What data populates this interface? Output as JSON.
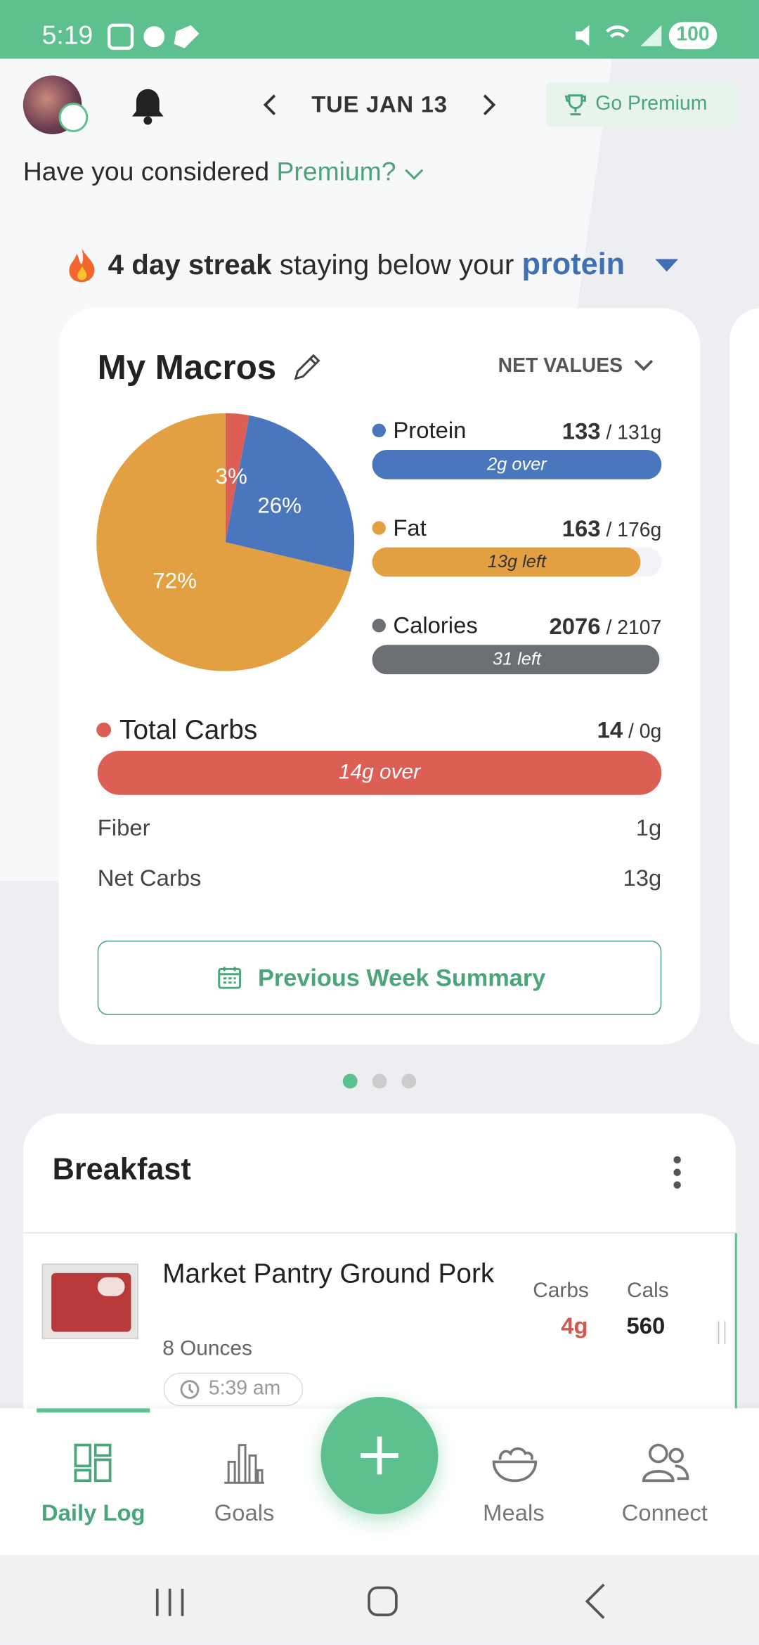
{
  "status_bar": {
    "time": "5:19",
    "battery": "100"
  },
  "header": {
    "date": "TUE JAN 13",
    "premium_button": "Go Premium",
    "prompt": "Have you considered",
    "prompt_link": "Premium?"
  },
  "streak": {
    "count": "4 day streak",
    "middle": "staying below your",
    "nutrient": "protein"
  },
  "macros": {
    "title": "My Macros",
    "mode": "NET VALUES",
    "pie": {
      "type": "pie",
      "values": [
        3,
        26,
        72
      ],
      "value_labels": [
        "3%",
        "26%",
        "72%"
      ],
      "colors": [
        "#dc5f55",
        "#4a76bd",
        "#e3a042"
      ]
    },
    "items": [
      {
        "name": "Protein",
        "amount": "133",
        "target": "/ 131g",
        "status": "2g over"
      },
      {
        "name": "Fat",
        "amount": "163",
        "target": "/ 176g",
        "status": "13g left"
      },
      {
        "name": "Calories",
        "amount": "2076",
        "target": "/ 2107",
        "status": "31 left"
      }
    ],
    "carbs": {
      "name": "Total Carbs",
      "amount": "14",
      "target": "/ 0g",
      "status": "14g over"
    },
    "fiber": {
      "label": "Fiber",
      "value": "1g"
    },
    "net_carbs": {
      "label": "Net Carbs",
      "value": "13g"
    },
    "summary_button": "Previous Week Summary"
  },
  "meal": {
    "title": "Breakfast",
    "food": {
      "name": "Market Pantry Ground Pork",
      "serving": "8 Ounces",
      "time": "5:39 am",
      "carbs_label": "Carbs",
      "carbs": "4g",
      "cals_label": "Cals",
      "cals": "560"
    }
  },
  "nav": [
    "Daily Log",
    "Goals",
    "Meals",
    "Connect"
  ]
}
